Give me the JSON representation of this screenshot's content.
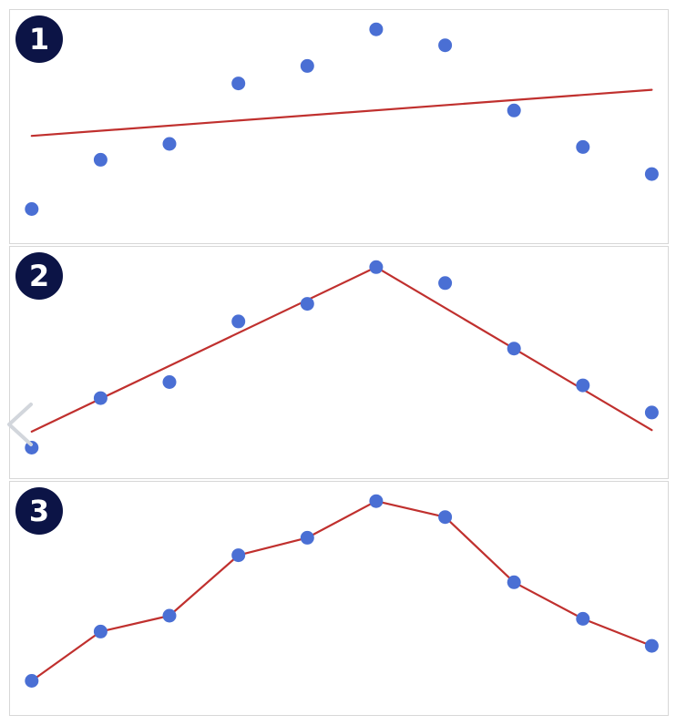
{
  "chart_data": [
    {
      "type": "scatter",
      "panel_label": "1",
      "x": [
        1,
        2,
        3,
        4,
        5,
        6,
        7,
        8,
        9,
        10
      ],
      "y": [
        1.0,
        4.1,
        5.1,
        8.9,
        10.0,
        12.3,
        11.3,
        7.2,
        4.9,
        3.2
      ],
      "fit": {
        "kind": "linear",
        "x": [
          1,
          10
        ],
        "y": [
          5.6,
          8.5
        ],
        "color": "#c0302e"
      },
      "point_color": "#4a6fd4",
      "xlim": [
        0.95,
        10.1
      ],
      "ylim": [
        0,
        12.6
      ],
      "grid": false,
      "axes_visible": false
    },
    {
      "type": "scatter",
      "panel_label": "2",
      "x": [
        1,
        2,
        3,
        4,
        5,
        6,
        7,
        8,
        9,
        10
      ],
      "y": [
        1.0,
        4.1,
        5.1,
        8.9,
        10.0,
        12.3,
        11.3,
        7.2,
        4.9,
        3.2
      ],
      "fit": {
        "kind": "piecewise-linear",
        "x": [
          1,
          6,
          10
        ],
        "y": [
          2.0,
          12.3,
          2.1
        ],
        "color": "#c0302e"
      },
      "point_color": "#4a6fd4",
      "xlim": [
        0.95,
        10.1
      ],
      "ylim": [
        0,
        12.6
      ],
      "grid": false,
      "axes_visible": false
    },
    {
      "type": "line",
      "panel_label": "3",
      "x": [
        1,
        2,
        3,
        4,
        5,
        6,
        7,
        8,
        9,
        10
      ],
      "y": [
        1.0,
        4.1,
        5.1,
        8.9,
        10.0,
        12.3,
        11.3,
        7.2,
        4.9,
        3.2
      ],
      "line_color": "#c0302e",
      "point_color": "#4a6fd4",
      "markers": true,
      "xlim": [
        0.95,
        10.1
      ],
      "ylim": [
        0,
        12.6
      ],
      "grid": false,
      "axes_visible": false
    }
  ],
  "navigation": {
    "back_icon": "chevron-left-icon"
  }
}
